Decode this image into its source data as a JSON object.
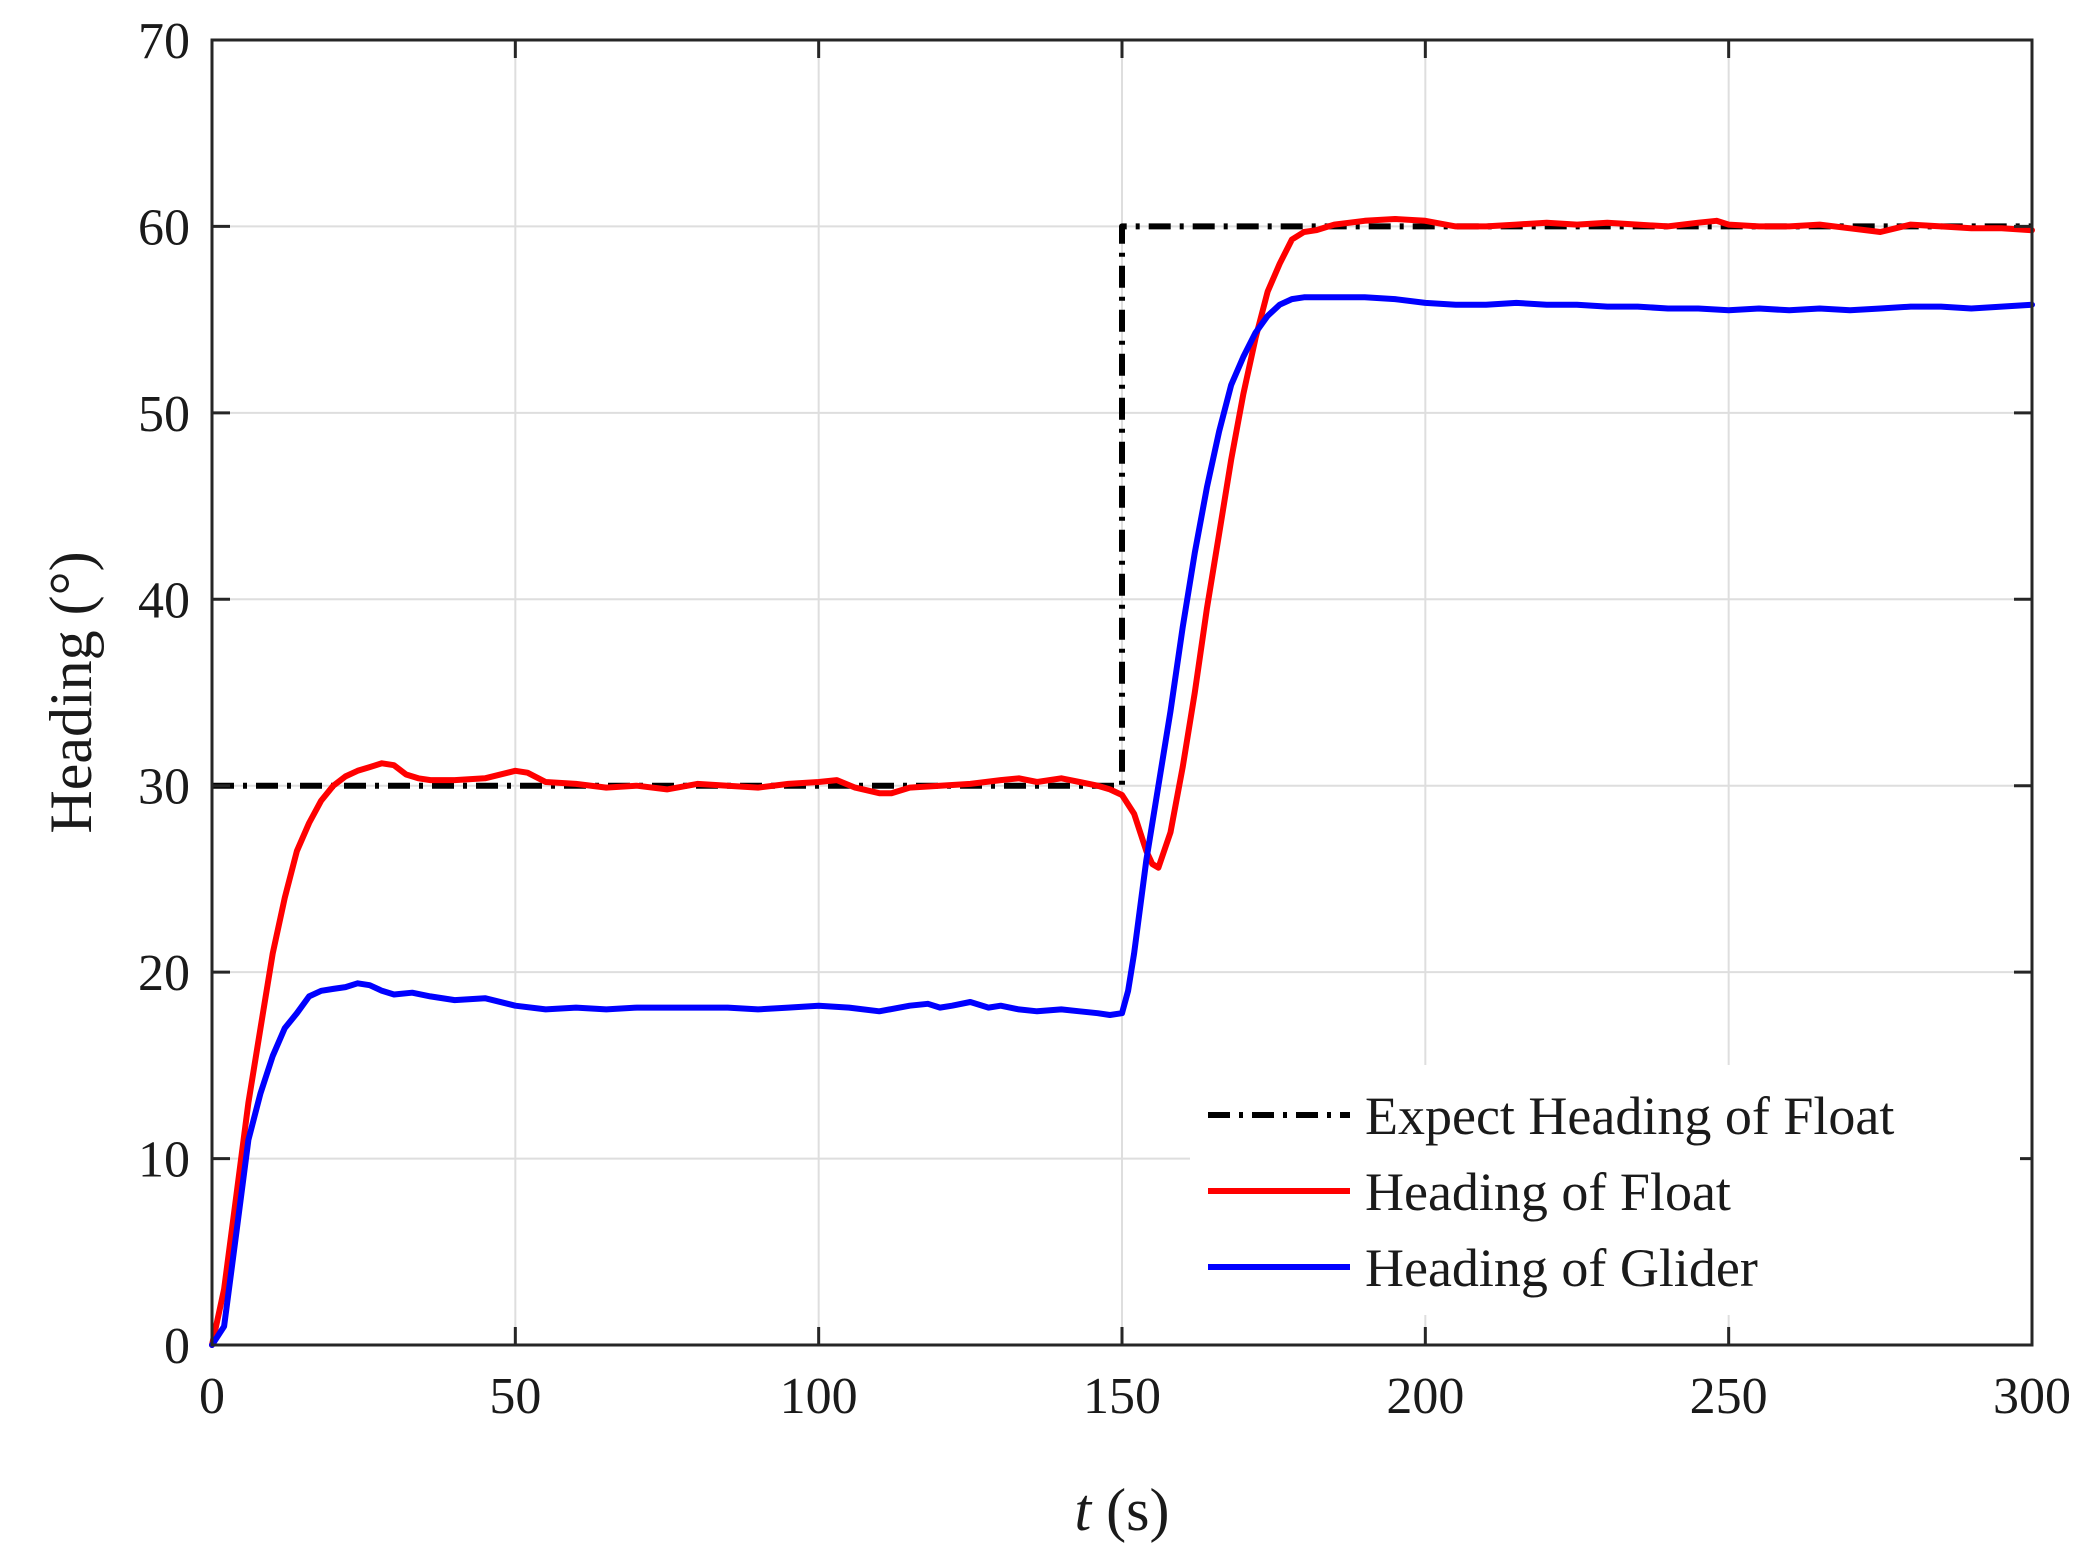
{
  "chart_data": {
    "type": "line",
    "title": "",
    "xlabel_italic": "t",
    "xlabel_rest": " (s)",
    "ylabel": "Heading (°)",
    "xlim": [
      0,
      300
    ],
    "ylim": [
      0,
      70
    ],
    "xticks": [
      0,
      50,
      100,
      150,
      200,
      250,
      300
    ],
    "yticks": [
      0,
      10,
      20,
      30,
      40,
      50,
      60,
      70
    ],
    "xtick_labels": [
      "0",
      "50",
      "100",
      "150",
      "200",
      "250",
      "300"
    ],
    "ytick_labels": [
      "0",
      "10",
      "20",
      "30",
      "40",
      "50",
      "60",
      "70"
    ],
    "grid": true,
    "legend_position": "bottom-right",
    "series": [
      {
        "name": "Expect Heading of Float",
        "color": "#000000",
        "style": "dash-dot",
        "x": [
          0,
          150,
          150,
          300
        ],
        "y": [
          30,
          30,
          60,
          60
        ]
      },
      {
        "name": "Heading of Float",
        "color": "#ff0000",
        "style": "solid",
        "x": [
          0,
          2,
          4,
          6,
          8,
          10,
          12,
          14,
          16,
          18,
          20,
          22,
          24,
          26,
          28,
          30,
          32,
          34,
          36,
          40,
          45,
          50,
          52,
          55,
          60,
          65,
          70,
          75,
          80,
          85,
          90,
          95,
          100,
          103,
          106,
          110,
          112,
          115,
          120,
          125,
          130,
          133,
          136,
          140,
          143,
          146,
          148,
          150,
          152,
          154,
          155,
          156,
          158,
          160,
          162,
          164,
          166,
          168,
          170,
          172,
          174,
          176,
          178,
          180,
          182,
          185,
          190,
          195,
          200,
          205,
          210,
          215,
          220,
          225,
          230,
          235,
          240,
          245,
          248,
          250,
          255,
          260,
          265,
          270,
          275,
          280,
          285,
          290,
          295,
          300
        ],
        "y": [
          0,
          3,
          8,
          13,
          17,
          21,
          24,
          26.5,
          28,
          29.2,
          30,
          30.5,
          30.8,
          31,
          31.2,
          31.1,
          30.6,
          30.4,
          30.3,
          30.3,
          30.4,
          30.8,
          30.7,
          30.2,
          30.1,
          29.9,
          30,
          29.8,
          30.1,
          30,
          29.9,
          30.1,
          30.2,
          30.3,
          29.9,
          29.6,
          29.6,
          29.9,
          30,
          30.1,
          30.3,
          30.4,
          30.2,
          30.4,
          30.2,
          30,
          29.8,
          29.5,
          28.5,
          26.5,
          25.8,
          25.6,
          27.5,
          31,
          35,
          39.5,
          43.5,
          47.5,
          51,
          54,
          56.5,
          58,
          59.3,
          59.7,
          59.8,
          60.1,
          60.3,
          60.4,
          60.3,
          60,
          60,
          60.1,
          60.2,
          60.1,
          60.2,
          60.1,
          60,
          60.2,
          60.3,
          60.1,
          60,
          60,
          60.1,
          59.9,
          59.7,
          60.1,
          60,
          59.9,
          59.9,
          59.8
        ]
      },
      {
        "name": "Heading of Glider",
        "color": "#0000ff",
        "style": "solid",
        "x": [
          0,
          2,
          4,
          6,
          8,
          10,
          12,
          14,
          16,
          18,
          20,
          22,
          24,
          26,
          28,
          30,
          33,
          36,
          40,
          45,
          50,
          55,
          60,
          65,
          70,
          75,
          80,
          85,
          90,
          95,
          100,
          105,
          110,
          115,
          118,
          120,
          122,
          125,
          128,
          130,
          133,
          136,
          140,
          143,
          146,
          148,
          150,
          151,
          152,
          153,
          154,
          156,
          158,
          160,
          162,
          164,
          166,
          168,
          170,
          172,
          174,
          176,
          178,
          180,
          183,
          186,
          190,
          195,
          200,
          205,
          210,
          215,
          220,
          225,
          230,
          235,
          240,
          245,
          250,
          255,
          260,
          265,
          270,
          275,
          280,
          285,
          290,
          295,
          300
        ],
        "y": [
          0,
          1,
          6,
          11,
          13.5,
          15.5,
          17,
          17.8,
          18.7,
          19,
          19.1,
          19.2,
          19.4,
          19.3,
          19,
          18.8,
          18.9,
          18.7,
          18.5,
          18.6,
          18.2,
          18,
          18.1,
          18,
          18.1,
          18.1,
          18.1,
          18.1,
          18,
          18.1,
          18.2,
          18.1,
          17.9,
          18.2,
          18.3,
          18.1,
          18.2,
          18.4,
          18.1,
          18.2,
          18,
          17.9,
          18,
          17.9,
          17.8,
          17.7,
          17.8,
          19,
          21,
          23.5,
          26,
          30,
          34,
          38.5,
          42.5,
          46,
          49,
          51.5,
          53,
          54.3,
          55.2,
          55.8,
          56.1,
          56.2,
          56.2,
          56.2,
          56.2,
          56.1,
          55.9,
          55.8,
          55.8,
          55.9,
          55.8,
          55.8,
          55.7,
          55.7,
          55.6,
          55.6,
          55.5,
          55.6,
          55.5,
          55.6,
          55.5,
          55.6,
          55.7,
          55.7,
          55.6,
          55.7,
          55.8
        ]
      }
    ]
  }
}
